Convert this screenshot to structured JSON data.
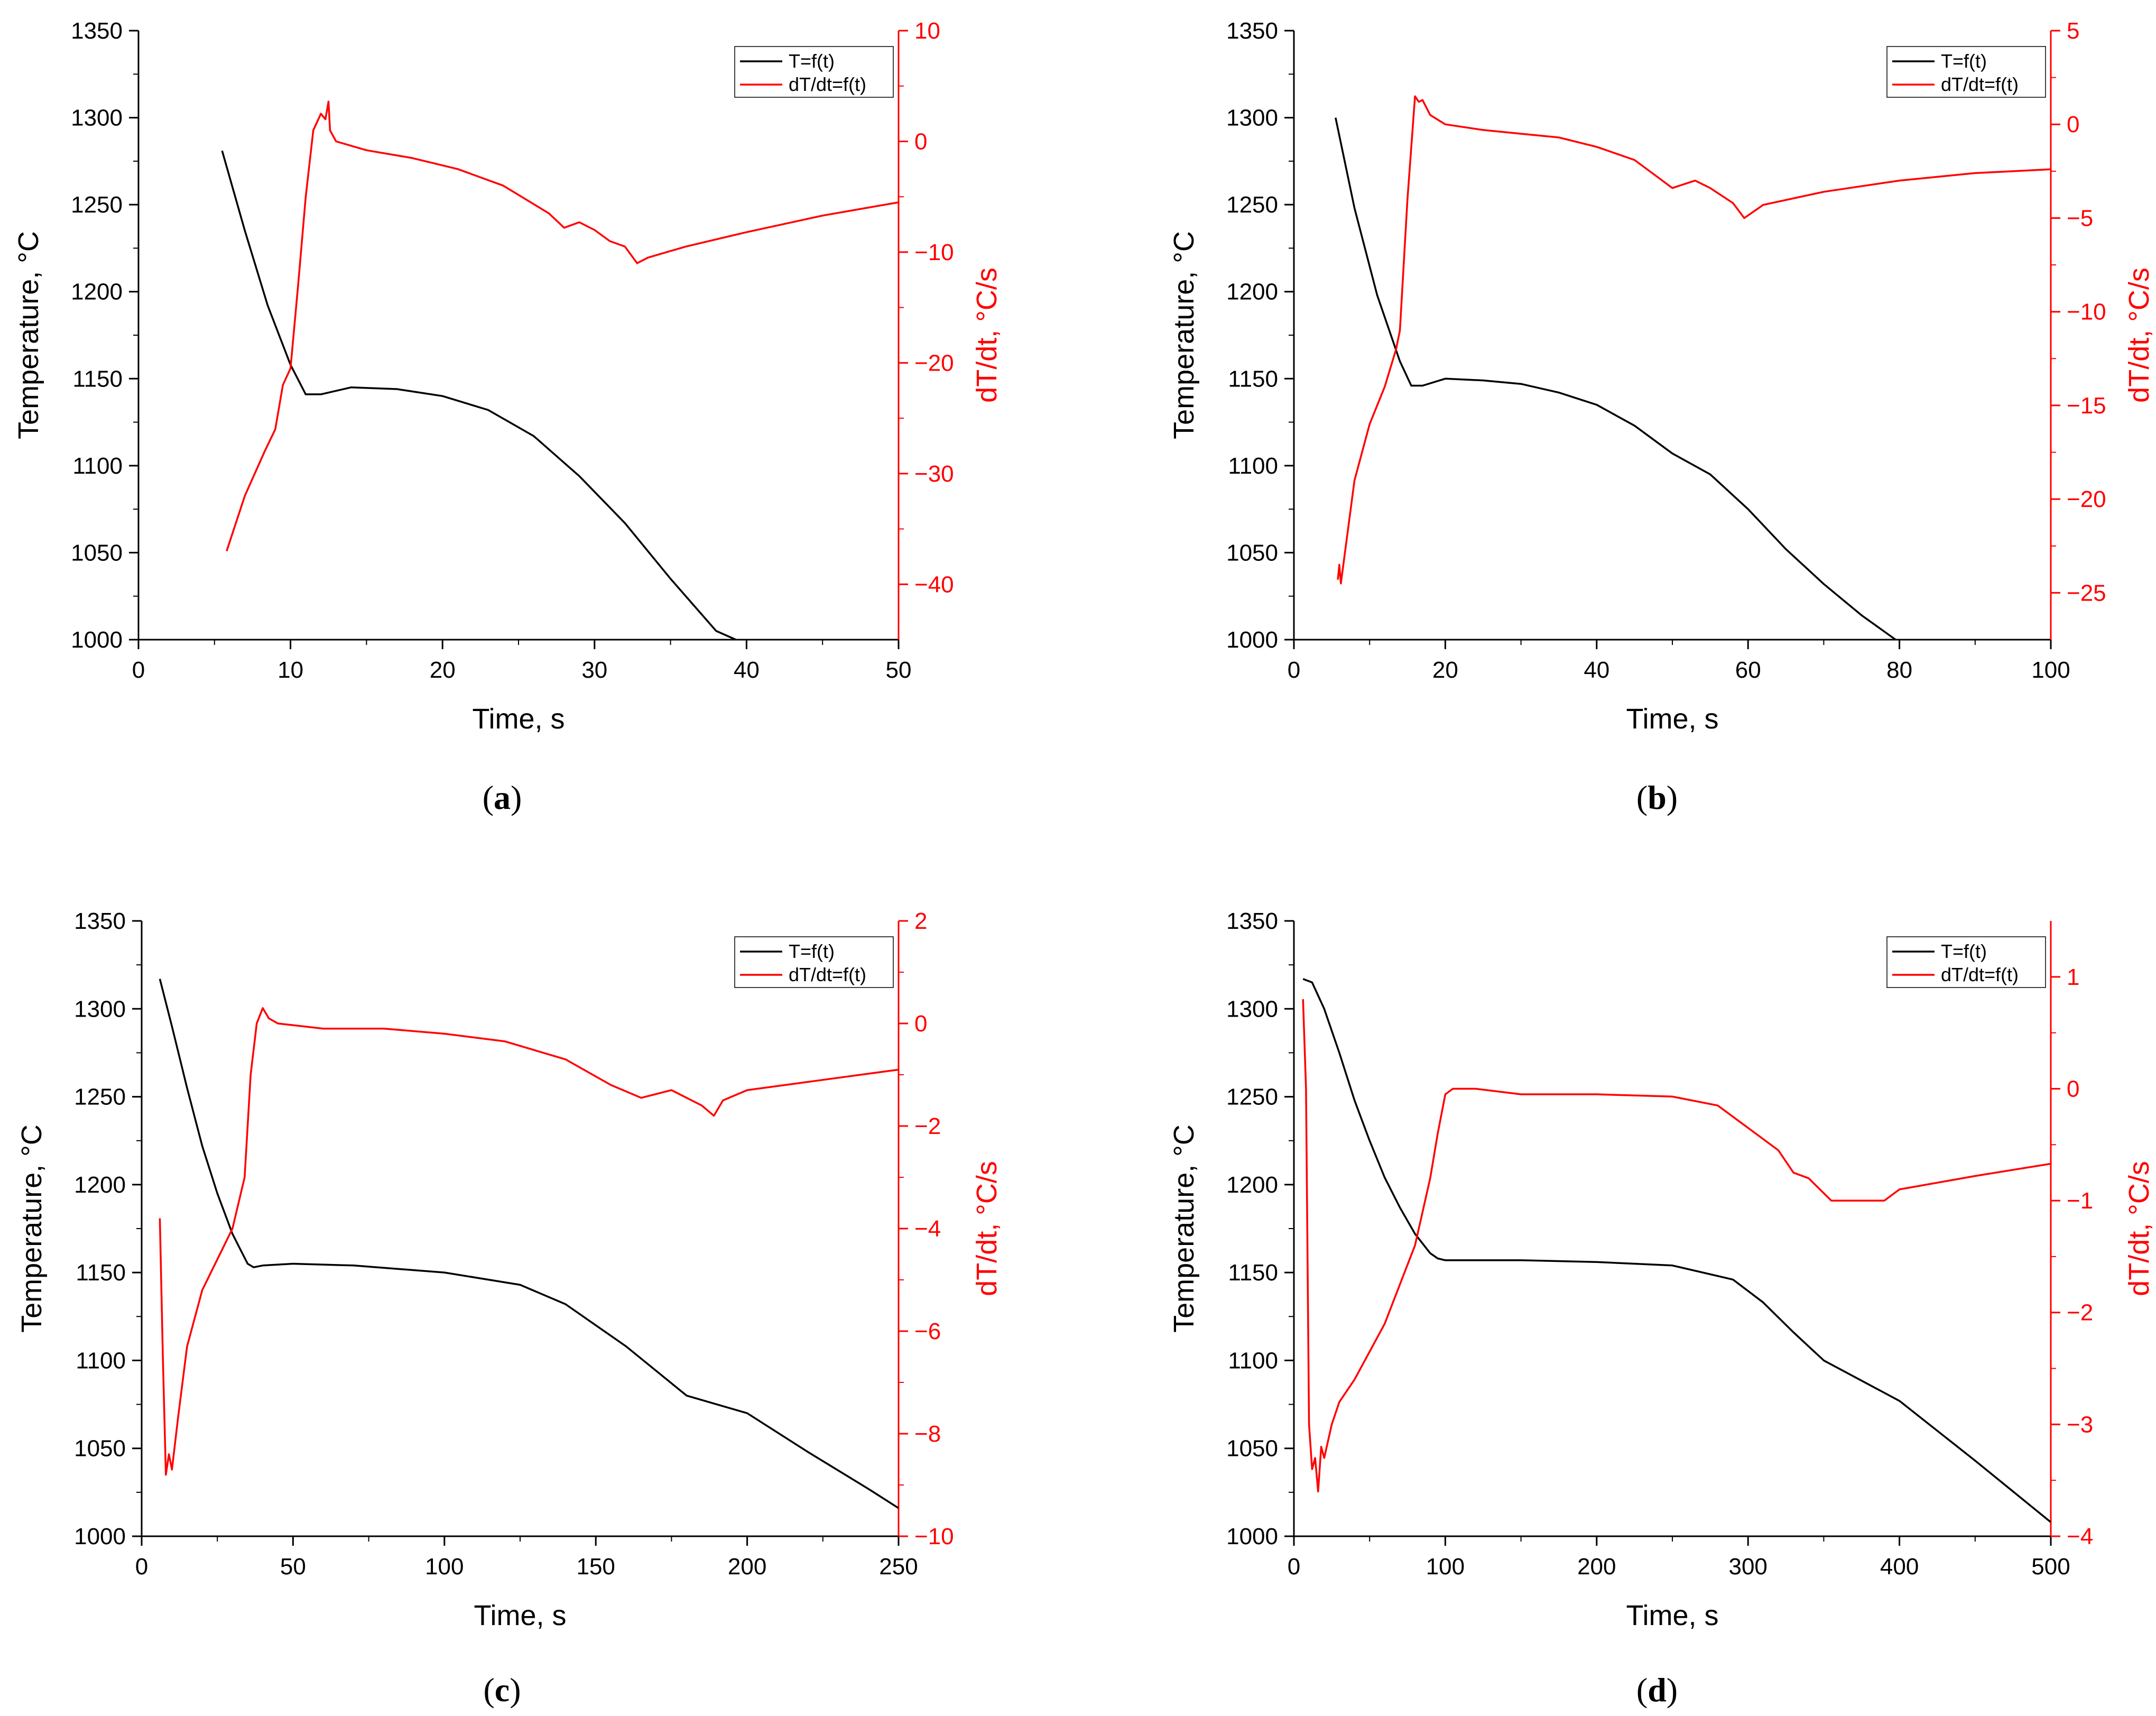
{
  "colors": {
    "temperature": "#000000",
    "derivative": "#ff0000",
    "axis": "#000000"
  },
  "chart_data": [
    {
      "type": "line",
      "caption_letter": "a",
      "xlabel": "Time, s",
      "ylabel": "Temperature, °C",
      "y2label": "dT/dt, °C/s",
      "xlim": [
        0,
        50
      ],
      "ylim": [
        1000,
        1350
      ],
      "y2lim": [
        -45,
        10
      ],
      "xticks": [
        0,
        10,
        20,
        30,
        40,
        50
      ],
      "yticks": [
        1000,
        1050,
        1100,
        1150,
        1200,
        1250,
        1300,
        1350
      ],
      "y2ticks": [
        -40,
        -30,
        -20,
        -10,
        0,
        10
      ],
      "legend": [
        "T=f(t)",
        "dT/dt=f(t)"
      ],
      "series": [
        {
          "name": "T=f(t)",
          "axis": "left",
          "x": [
            5.5,
            7,
            8.5,
            10,
            11,
            12,
            14,
            17,
            20,
            23,
            26,
            29,
            32,
            35,
            38,
            39.3
          ],
          "y": [
            1281,
            1235,
            1192,
            1158,
            1141,
            1141,
            1145,
            1144,
            1140,
            1132,
            1117,
            1094,
            1067,
            1035,
            1005,
            1000
          ]
        },
        {
          "name": "dT/dt=f(t)",
          "axis": "right",
          "x": [
            5.8,
            7,
            8.3,
            9,
            9.5,
            10,
            10.5,
            11,
            11.5,
            12,
            12.3,
            12.5,
            12.6,
            13,
            15,
            18,
            21,
            24,
            27,
            28,
            29,
            30,
            31,
            32,
            32.8,
            33.5,
            36,
            40,
            45,
            50
          ],
          "y": [
            -37,
            -32,
            -28,
            -26,
            -22,
            -20.5,
            -13,
            -5,
            1,
            2.5,
            2,
            3.6,
            1,
            0,
            -0.8,
            -1.5,
            -2.5,
            -4,
            -6.5,
            -7.8,
            -7.3,
            -8,
            -9,
            -9.5,
            -11,
            -10.5,
            -9.5,
            -8.2,
            -6.7,
            -5.5
          ]
        }
      ]
    },
    {
      "type": "line",
      "caption_letter": "b",
      "xlabel": "Time, s",
      "ylabel": "Temperature, °C",
      "y2label": "dT/dt, °C/s",
      "xlim": [
        0,
        100
      ],
      "ylim": [
        1000,
        1350
      ],
      "y2lim": [
        -27.5,
        5
      ],
      "xticks": [
        0,
        20,
        40,
        60,
        80,
        100
      ],
      "yticks": [
        1000,
        1050,
        1100,
        1150,
        1200,
        1250,
        1300,
        1350
      ],
      "y2ticks": [
        -25,
        -20,
        -15,
        -10,
        -5,
        0,
        5
      ],
      "legend": [
        "T=f(t)",
        "dT/dt=f(t)"
      ],
      "series": [
        {
          "name": "T=f(t)",
          "axis": "left",
          "x": [
            5.5,
            8,
            11,
            14,
            15.5,
            17,
            20,
            25,
            30,
            35,
            40,
            45,
            50,
            55,
            60,
            65,
            70,
            75,
            79.5
          ],
          "y": [
            1300,
            1248,
            1198,
            1160,
            1146,
            1146,
            1150,
            1149,
            1147,
            1142,
            1135,
            1123,
            1107,
            1095,
            1075,
            1052,
            1032,
            1014,
            1000
          ]
        },
        {
          "name": "dT/dt=f(t)",
          "axis": "right",
          "x": [
            5.8,
            6,
            6.2,
            8,
            10,
            12,
            13.5,
            14,
            15,
            16,
            16.5,
            17,
            18,
            20,
            25,
            30,
            35,
            40,
            45,
            48,
            50,
            53,
            55,
            58,
            59.5,
            62,
            70,
            80,
            90,
            100
          ],
          "y": [
            -24.3,
            -23.5,
            -24.5,
            -19,
            -16,
            -14,
            -12,
            -11,
            -4,
            1.5,
            1.2,
            1.3,
            0.5,
            0,
            -0.3,
            -0.5,
            -0.7,
            -1.2,
            -1.9,
            -2.8,
            -3.4,
            -3.0,
            -3.4,
            -4.2,
            -5.0,
            -4.3,
            -3.6,
            -3.0,
            -2.6,
            -2.4
          ]
        }
      ]
    },
    {
      "type": "line",
      "caption_letter": "c",
      "xlabel": "Time, s",
      "ylabel": "Temperature, °C",
      "y2label": "dT/dt, °C/s",
      "xlim": [
        0,
        250
      ],
      "ylim": [
        1000,
        1350
      ],
      "y2lim": [
        -10,
        2
      ],
      "xticks": [
        0,
        50,
        100,
        150,
        200,
        250
      ],
      "yticks": [
        1000,
        1050,
        1100,
        1150,
        1200,
        1250,
        1300,
        1350
      ],
      "y2ticks": [
        -10,
        -8,
        -6,
        -4,
        -2,
        0,
        2
      ],
      "legend": [
        "T=f(t)",
        "dT/dt=f(t)"
      ],
      "series": [
        {
          "name": "T=f(t)",
          "axis": "left",
          "x": [
            6,
            10,
            15,
            20,
            25,
            30,
            35,
            37,
            40,
            50,
            70,
            100,
            125,
            140,
            160,
            180,
            200,
            220,
            240,
            250
          ],
          "y": [
            1317,
            1290,
            1255,
            1222,
            1195,
            1172,
            1155,
            1153,
            1154,
            1155,
            1154,
            1150,
            1143,
            1132,
            1108,
            1080,
            1070,
            1048,
            1027,
            1016
          ]
        },
        {
          "name": "dT/dt=f(t)",
          "axis": "right",
          "x": [
            6,
            7,
            8,
            9,
            10,
            12,
            15,
            20,
            25,
            30,
            34,
            36,
            38,
            40,
            42,
            45,
            60,
            80,
            100,
            120,
            140,
            155,
            165,
            175,
            185,
            189,
            192,
            200,
            225,
            250
          ],
          "y": [
            -3.8,
            -6.5,
            -8.8,
            -8.4,
            -8.7,
            -7.7,
            -6.3,
            -5.2,
            -4.6,
            -4,
            -3,
            -1,
            0,
            0.3,
            0.1,
            0,
            -0.1,
            -0.1,
            -0.2,
            -0.35,
            -0.7,
            -1.2,
            -1.45,
            -1.3,
            -1.6,
            -1.8,
            -1.5,
            -1.3,
            -1.1,
            -0.9
          ]
        }
      ]
    },
    {
      "type": "line",
      "caption_letter": "d",
      "xlabel": "Time, s",
      "ylabel": "Temperature, °C",
      "y2label": "dT/dt, °C/s",
      "xlim": [
        0,
        500
      ],
      "ylim": [
        1000,
        1350
      ],
      "y2lim": [
        -4,
        1.5
      ],
      "xticks": [
        0,
        100,
        200,
        300,
        400,
        500
      ],
      "yticks": [
        1000,
        1050,
        1100,
        1150,
        1200,
        1250,
        1300,
        1350
      ],
      "y2ticks": [
        -4,
        -3,
        -2,
        -1,
        0,
        1
      ],
      "legend": [
        "T=f(t)",
        "dT/dt=f(t)"
      ],
      "series": [
        {
          "name": "T=f(t)",
          "axis": "left",
          "x": [
            6,
            12,
            20,
            30,
            40,
            50,
            60,
            70,
            80,
            90,
            95,
            100,
            150,
            200,
            250,
            290,
            310,
            330,
            350,
            400,
            450,
            500
          ],
          "y": [
            1317,
            1315,
            1300,
            1275,
            1248,
            1225,
            1204,
            1187,
            1172,
            1161,
            1158,
            1157,
            1157,
            1156,
            1154,
            1146,
            1133,
            1116,
            1100,
            1077,
            1043,
            1008
          ]
        },
        {
          "name": "dT/dt=f(t)",
          "axis": "right",
          "x": [
            6,
            8,
            10,
            12,
            14,
            16,
            18,
            20,
            25,
            30,
            40,
            60,
            80,
            90,
            95,
            100,
            105,
            120,
            150,
            200,
            250,
            280,
            300,
            320,
            330,
            340,
            355,
            375,
            390,
            400,
            450,
            500
          ],
          "y": [
            0.8,
            0,
            -3,
            -3.4,
            -3.3,
            -3.6,
            -3.2,
            -3.3,
            -3,
            -2.8,
            -2.6,
            -2.1,
            -1.4,
            -0.8,
            -0.4,
            -0.05,
            0,
            0,
            -0.05,
            -0.05,
            -0.07,
            -0.15,
            -0.35,
            -0.55,
            -0.75,
            -0.8,
            -1,
            -1,
            -1,
            -0.9,
            -0.78,
            -0.67
          ]
        }
      ]
    }
  ]
}
